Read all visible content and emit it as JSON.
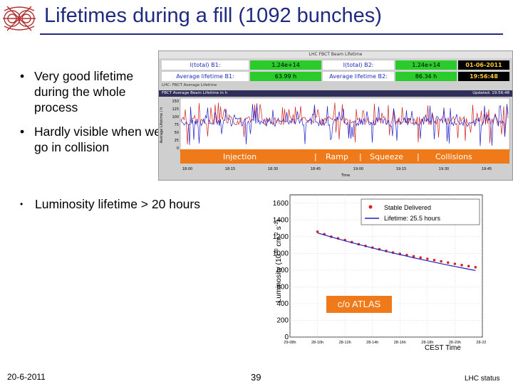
{
  "header": {
    "title": "Lifetimes during a fill (1092 bunches)"
  },
  "bullets": [
    "Very good lifetime during the whole process",
    "Hardly visible when we go in collision",
    "Luminosity lifetime > 20 hours"
  ],
  "monitor": {
    "window_title": "LHC FBCT Beam Lifetime",
    "itotal_b1_label": "I(total) B1:",
    "itotal_b1_value": "1.24e+14",
    "itotal_b2_label": "I(total) B2:",
    "itotal_b2_value": "1.24e+14",
    "date": "01-06-2011",
    "avg_b1_label": "Average lifetime B1:",
    "avg_b1_value": "63.99 h",
    "avg_b2_label": "Average lifetime B2:",
    "avg_b2_value": "86.34 h",
    "time": "19:56:48",
    "subheader_left": "LHC- FBCT Average Lifetime",
    "plot_title": "FBCT Average Beam Lifetime in h",
    "updated": "Updated: 19:56:48",
    "ylabel": "Average Lifetime / h",
    "yticks": [
      "150",
      "125",
      "100",
      "75",
      "50",
      "25",
      "0"
    ],
    "xticks": [
      "18:00",
      "18:15",
      "18:30",
      "18:45",
      "19:00",
      "19:15",
      "19:30",
      "19:45"
    ],
    "xlabel": "Time",
    "phases": [
      "Injection",
      "Ramp",
      "Squeeze",
      "Collisions"
    ],
    "colors": {
      "b1": "#2020d0",
      "b2": "#d02020",
      "phase_bar": "#f07a1a"
    }
  },
  "lumi_chart": {
    "ylabel": "Luminosity (10",
    "ylabel_exp": "30",
    "ylabel_unit": " cm",
    "ylabel_unit_exp": "-2",
    "ylabel_s": " s",
    "ylabel_s_exp": "-1",
    "ylabel_close": ")",
    "xlabel": "CEST Time",
    "yticks": [
      "0",
      "200",
      "400",
      "600",
      "800",
      "1000",
      "1200",
      "1400",
      "1600"
    ],
    "xticks": [
      "29-08h",
      "28-10h",
      "28-12h",
      "28-14h",
      "28-16h",
      "28-18h",
      "28-20h",
      "28-22h"
    ],
    "legend": [
      "Stable Delivered",
      "Lifetime: 25.5 hours"
    ],
    "annotation": "c/o ATLAS",
    "colors": {
      "points": "#e02020",
      "fit": "#2020c0",
      "annotation_bg": "#f07a1a"
    }
  },
  "chart_data": {
    "type": "scatter",
    "title": "",
    "xlabel": "CEST Time",
    "ylabel": "Luminosity (10^30 cm^-2 s^-1)",
    "ylim": [
      0,
      1700
    ],
    "x_ticks": [
      "29-08h",
      "28-10h",
      "28-12h",
      "28-14h",
      "28-16h",
      "28-18h",
      "28-20h",
      "28-22h"
    ],
    "x_hours": [
      10.0,
      10.5,
      11.0,
      11.5,
      12.0,
      12.5,
      13.0,
      13.5,
      14.0,
      14.5,
      15.0,
      15.5,
      16.0,
      16.5,
      17.0,
      17.5,
      18.0,
      18.5,
      19.0,
      19.5,
      20.0,
      20.5,
      21.0,
      21.5
    ],
    "series": [
      {
        "name": "Stable Delivered",
        "values": [
          1260,
          1230,
          1200,
          1180,
          1160,
          1135,
          1110,
          1090,
          1070,
          1050,
          1030,
          1010,
          995,
          980,
          965,
          950,
          935,
          920,
          905,
          890,
          875,
          860,
          848,
          835
        ]
      },
      {
        "name": "Lifetime: 25.5 hours",
        "values": [
          1245,
          1221,
          1197,
          1174,
          1151,
          1129,
          1107,
          1086,
          1065,
          1045,
          1025,
          1005,
          986,
          967,
          948,
          930,
          912,
          895,
          877,
          860,
          844,
          828,
          812,
          796
        ]
      }
    ],
    "legend_position": "top-right",
    "grid": true
  }
}
